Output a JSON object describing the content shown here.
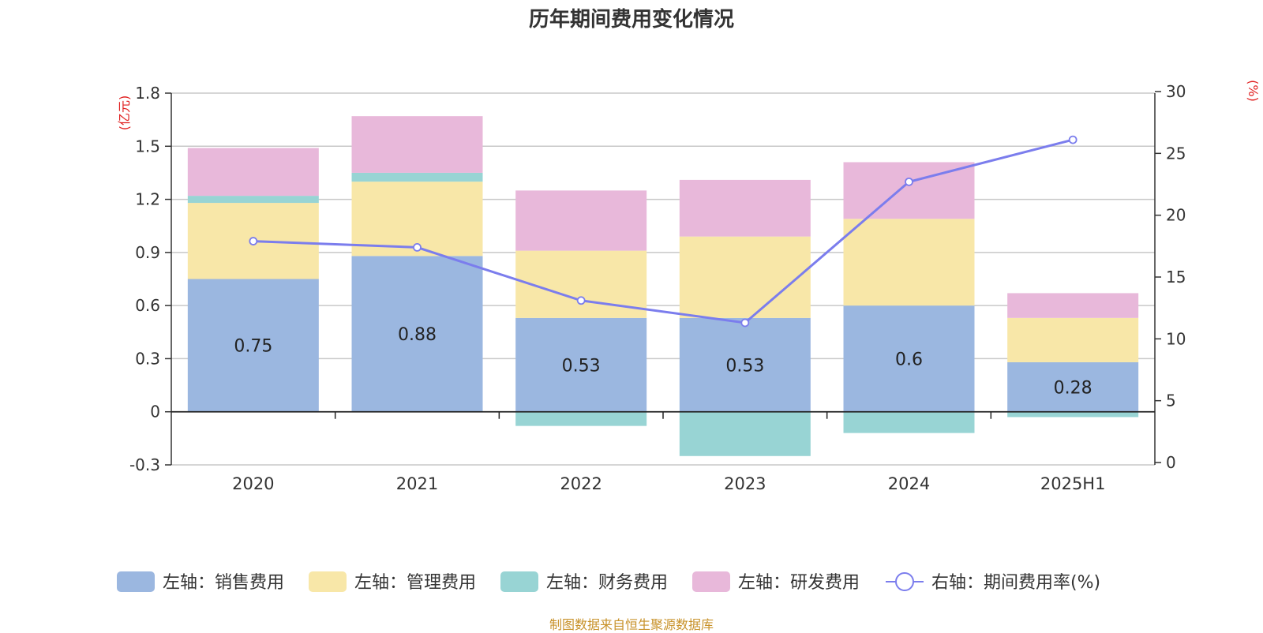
{
  "title": "历年期间费用变化情况",
  "footer": "制图数据来自恒生聚源数据库",
  "left_unit": "(亿元)",
  "right_unit": "(%)",
  "chart_data": {
    "type": "bar",
    "stacked": true,
    "categories": [
      "2020",
      "2021",
      "2022",
      "2023",
      "2024",
      "2025H1"
    ],
    "left_axis": {
      "min": -0.3,
      "max": 1.8,
      "ticks": [
        "-0.3",
        "0",
        "0.3",
        "0.6",
        "0.9",
        "1.2",
        "1.5",
        "1.8"
      ]
    },
    "right_axis": {
      "min": 0,
      "max": 30,
      "ticks": [
        "0",
        "5",
        "10",
        "15",
        "20",
        "25",
        "30"
      ]
    },
    "series": [
      {
        "name": "左轴：销售费用",
        "axis": "left",
        "type": "bar",
        "color": "#9bb7e0",
        "values": [
          0.75,
          0.88,
          0.53,
          0.53,
          0.6,
          0.28
        ],
        "labels": [
          "0.75",
          "0.88",
          "0.53",
          "0.53",
          "0.6",
          "0.28"
        ]
      },
      {
        "name": "左轴：管理费用",
        "axis": "left",
        "type": "bar",
        "color": "#f8e7a8",
        "values": [
          0.43,
          0.42,
          0.38,
          0.46,
          0.49,
          0.25
        ]
      },
      {
        "name": "左轴：财务费用",
        "axis": "left",
        "type": "bar",
        "color": "#98d4d4",
        "values": [
          0.04,
          0.05,
          -0.08,
          -0.25,
          -0.12,
          -0.03
        ]
      },
      {
        "name": "左轴：研发费用",
        "axis": "left",
        "type": "bar",
        "color": "#e8b8da",
        "values": [
          0.27,
          0.32,
          0.34,
          0.32,
          0.32,
          0.14
        ]
      },
      {
        "name": "右轴：期间费用率(%)",
        "axis": "right",
        "type": "line",
        "color": "#7b7ded",
        "values": [
          17.9,
          17.4,
          13.1,
          11.3,
          22.7,
          26.1
        ]
      }
    ],
    "legend_position": "bottom",
    "grid": true
  }
}
